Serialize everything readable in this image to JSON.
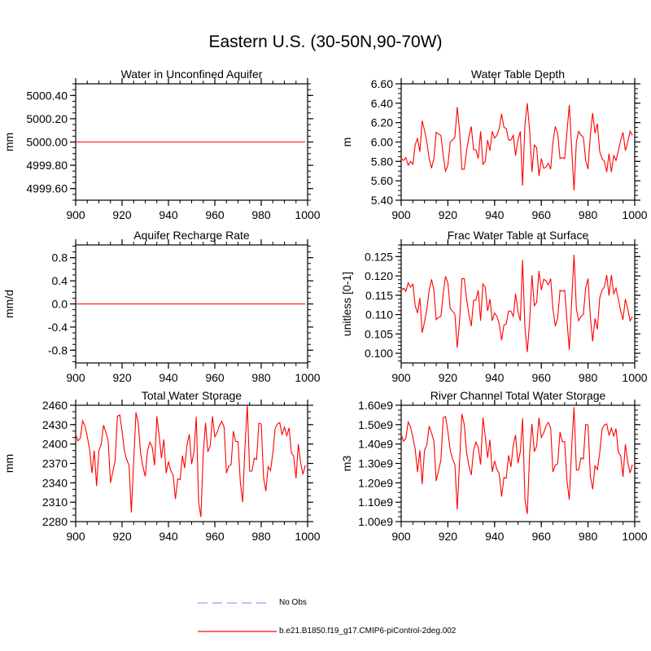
{
  "title": "Eastern U.S. (30-50N,90-70W)",
  "line_color": "#ff0000",
  "obs_color": "#9999ff",
  "legend": [
    {
      "label": "No Obs",
      "style": "dashed",
      "color": "#9999ff"
    },
    {
      "label": "b.e21.B1850.f19_g17.CMIP6-piControl-2deg.002",
      "style": "solid",
      "color": "#ff0000"
    }
  ],
  "chart_data": [
    {
      "type": "line",
      "title": "Water in Unconfined Aquifer",
      "ylabel": "mm",
      "xlim": [
        900,
        1000
      ],
      "xticks": [
        900,
        920,
        940,
        960,
        980,
        1000
      ],
      "xtick_labels": [
        "900",
        "920",
        "940",
        "960",
        "980",
        "1000"
      ],
      "x_minor_step": 5,
      "ylim": [
        4999.5,
        5000.5
      ],
      "yticks": [
        5000.4,
        5000.2,
        5000.0,
        4999.8,
        4999.6
      ],
      "ytick_labels": [
        "5000.40",
        "5000.20",
        "5000.00",
        "4999.80",
        "4999.60"
      ],
      "y_minor_step": 0.05,
      "x_start": 900,
      "constant": 5000.0,
      "n": 100
    },
    {
      "type": "line",
      "title": "Water Table Depth",
      "ylabel": "m",
      "xlim": [
        900,
        1000
      ],
      "xticks": [
        900,
        920,
        940,
        960,
        980,
        1000
      ],
      "xtick_labels": [
        "900",
        "920",
        "940",
        "960",
        "980",
        "1000"
      ],
      "x_minor_step": 5,
      "ylim": [
        5.4,
        6.6
      ],
      "yticks": [
        6.6,
        6.4,
        6.2,
        6.0,
        5.8,
        5.6,
        5.4
      ],
      "ytick_labels": [
        "6.60",
        "6.40",
        "6.20",
        "6.00",
        "5.80",
        "5.60",
        "5.40"
      ],
      "y_minor_step": 0.05,
      "x_start": 900,
      "values": [
        5.83,
        5.81,
        5.84,
        5.76,
        5.8,
        5.77,
        5.97,
        6.04,
        5.9,
        6.22,
        6.12,
        6.0,
        5.83,
        5.73,
        5.83,
        6.1,
        6.08,
        6.07,
        5.86,
        5.7,
        5.76,
        6.0,
        6.02,
        6.05,
        6.36,
        6.11,
        5.72,
        5.72,
        5.91,
        6.05,
        6.16,
        5.92,
        5.92,
        5.83,
        6.11,
        5.77,
        5.8,
        6.02,
        5.91,
        6.11,
        6.04,
        6.07,
        6.14,
        6.29,
        6.15,
        6.14,
        6.02,
        6.02,
        6.07,
        5.86,
        6.02,
        6.11,
        5.55,
        6.18,
        6.4,
        6.11,
        5.69,
        5.97,
        5.94,
        5.65,
        5.83,
        5.73,
        5.74,
        5.78,
        5.72,
        6.0,
        6.16,
        6.09,
        5.83,
        5.84,
        5.83,
        6.11,
        6.38,
        5.94,
        5.5,
        6.0,
        6.11,
        6.07,
        6.05,
        5.81,
        5.72,
        6.08,
        6.3,
        6.09,
        6.19,
        5.9,
        5.83,
        5.8,
        5.69,
        5.88,
        5.69,
        5.86,
        5.81,
        5.91,
        6.02,
        6.1,
        5.91,
        6.0,
        6.11,
        6.07
      ]
    },
    {
      "type": "line",
      "title": "Aquifer Recharge Rate",
      "ylabel": "mm/d",
      "xlim": [
        900,
        1000
      ],
      "xticks": [
        900,
        920,
        940,
        960,
        980,
        1000
      ],
      "xtick_labels": [
        "900",
        "920",
        "940",
        "960",
        "980",
        "1000"
      ],
      "x_minor_step": 5,
      "ylim": [
        -1.02,
        1.02
      ],
      "yticks": [
        0.8,
        0.4,
        0.0,
        -0.4,
        -0.8
      ],
      "ytick_labels": [
        "0.8",
        "0.4",
        "0.0",
        "-0.4",
        "-0.8"
      ],
      "y_minor_step": 0.1,
      "x_start": 900,
      "constant": 0.0,
      "n": 100
    },
    {
      "type": "line",
      "title": "Frac Water Table at Surface",
      "ylabel": "unitless [0-1]",
      "xlim": [
        900,
        1000
      ],
      "xticks": [
        900,
        920,
        940,
        960,
        980,
        1000
      ],
      "xtick_labels": [
        "900",
        "920",
        "940",
        "960",
        "980",
        "1000"
      ],
      "x_minor_step": 5,
      "ylim": [
        0.0975,
        0.128
      ],
      "yticks": [
        0.125,
        0.12,
        0.115,
        0.11,
        0.105,
        0.1
      ],
      "ytick_labels": [
        "0.125",
        "0.120",
        "0.115",
        "0.110",
        "0.105",
        "0.100"
      ],
      "y_minor_step": 0.001,
      "x_start": 900,
      "values": [
        0.1163,
        0.1168,
        0.116,
        0.1182,
        0.1171,
        0.1179,
        0.1123,
        0.1104,
        0.1143,
        0.1053,
        0.1081,
        0.1115,
        0.1163,
        0.1191,
        0.1163,
        0.1087,
        0.1093,
        0.1095,
        0.1154,
        0.1199,
        0.1182,
        0.1115,
        0.1109,
        0.1101,
        0.1014,
        0.1084,
        0.1193,
        0.1193,
        0.114,
        0.1101,
        0.107,
        0.1137,
        0.1137,
        0.1163,
        0.1084,
        0.1179,
        0.1171,
        0.1109,
        0.114,
        0.1084,
        0.1104,
        0.1095,
        0.1076,
        0.1034,
        0.1073,
        0.1076,
        0.1109,
        0.1109,
        0.1095,
        0.1154,
        0.1109,
        0.1084,
        0.1241,
        0.1065,
        0.1003,
        0.1084,
        0.1202,
        0.1123,
        0.1132,
        0.1213,
        0.1163,
        0.1191,
        0.1188,
        0.1177,
        0.1193,
        0.1115,
        0.107,
        0.109,
        0.1163,
        0.116,
        0.1163,
        0.1084,
        0.1009,
        0.1132,
        0.1255,
        0.1115,
        0.1084,
        0.1095,
        0.1101,
        0.1168,
        0.1193,
        0.1093,
        0.1031,
        0.109,
        0.1062,
        0.1143,
        0.1163,
        0.1171,
        0.1202,
        0.1149,
        0.1202,
        0.1154,
        0.1168,
        0.114,
        0.1109,
        0.1087,
        0.114,
        0.1115,
        0.1084,
        0.1095
      ]
    },
    {
      "type": "line",
      "title": "Total Water Storage",
      "ylabel": "mm",
      "xlim": [
        900,
        1000
      ],
      "xticks": [
        900,
        920,
        940,
        960,
        980,
        1000
      ],
      "xtick_labels": [
        "900",
        "920",
        "940",
        "960",
        "980",
        "1000"
      ],
      "x_minor_step": 5,
      "ylim": [
        2280,
        2460
      ],
      "yticks": [
        2460,
        2430,
        2400,
        2370,
        2340,
        2310,
        2280
      ],
      "ytick_labels": [
        "2460",
        "2430",
        "2400",
        "2370",
        "2340",
        "2310",
        "2280"
      ],
      "y_minor_step": 10,
      "x_start": 900,
      "values": [
        2415,
        2405,
        2409,
        2436,
        2428,
        2411,
        2392,
        2355,
        2390,
        2335,
        2390,
        2399,
        2429,
        2418,
        2405,
        2340,
        2357,
        2374,
        2443,
        2445,
        2420,
        2390,
        2376,
        2367,
        2294,
        2373,
        2449,
        2432,
        2386,
        2365,
        2350,
        2390,
        2403,
        2395,
        2367,
        2443,
        2413,
        2378,
        2407,
        2355,
        2373,
        2359,
        2352,
        2315,
        2346,
        2345,
        2382,
        2363,
        2399,
        2415,
        2369,
        2388,
        2442,
        2310,
        2287,
        2386,
        2433,
        2388,
        2397,
        2443,
        2411,
        2418,
        2429,
        2435,
        2426,
        2355,
        2366,
        2368,
        2420,
        2404,
        2404,
        2340,
        2310,
        2395,
        2460,
        2358,
        2358,
        2378,
        2376,
        2432,
        2431,
        2348,
        2327,
        2365,
        2359,
        2386,
        2424,
        2431,
        2433,
        2414,
        2426,
        2413,
        2425,
        2387,
        2381,
        2347,
        2400,
        2371,
        2353,
        2367
      ]
    },
    {
      "type": "line",
      "title": "River Channel Total Water Storage",
      "ylabel": "m3",
      "xlim": [
        900,
        1000
      ],
      "xticks": [
        900,
        920,
        940,
        960,
        980,
        1000
      ],
      "xtick_labels": [
        "900",
        "920",
        "940",
        "960",
        "980",
        "1000"
      ],
      "x_minor_step": 5,
      "ylim": [
        1.0,
        1.6
      ],
      "yticks": [
        1.6,
        1.5,
        1.4,
        1.3,
        1.2,
        1.1,
        1.0
      ],
      "ytick_labels": [
        "1.60e9",
        "1.50e9",
        "1.40e9",
        "1.30e9",
        "1.20e9",
        "1.10e9",
        "1.00e9"
      ],
      "y_minor_step": 0.025,
      "y_units_scale": "1e9",
      "x_start": 900,
      "values": [
        1.447,
        1.415,
        1.428,
        1.514,
        1.488,
        1.434,
        1.374,
        1.256,
        1.368,
        1.193,
        1.368,
        1.396,
        1.492,
        1.457,
        1.415,
        1.209,
        1.263,
        1.317,
        1.536,
        1.542,
        1.463,
        1.368,
        1.323,
        1.294,
        1.062,
        1.313,
        1.555,
        1.501,
        1.355,
        1.288,
        1.24,
        1.368,
        1.409,
        1.383,
        1.294,
        1.536,
        1.441,
        1.329,
        1.422,
        1.256,
        1.313,
        1.269,
        1.247,
        1.129,
        1.228,
        1.224,
        1.342,
        1.282,
        1.396,
        1.447,
        1.301,
        1.361,
        1.533,
        1.113,
        1.04,
        1.355,
        1.504,
        1.361,
        1.39,
        1.536,
        1.434,
        1.457,
        1.492,
        1.511,
        1.482,
        1.256,
        1.291,
        1.298,
        1.463,
        1.412,
        1.412,
        1.209,
        1.113,
        1.383,
        1.59,
        1.266,
        1.266,
        1.329,
        1.323,
        1.501,
        1.498,
        1.234,
        1.167,
        1.288,
        1.269,
        1.355,
        1.476,
        1.498,
        1.504,
        1.444,
        1.482,
        1.441,
        1.479,
        1.358,
        1.339,
        1.231,
        1.399,
        1.307,
        1.25,
        1.294
      ]
    }
  ]
}
